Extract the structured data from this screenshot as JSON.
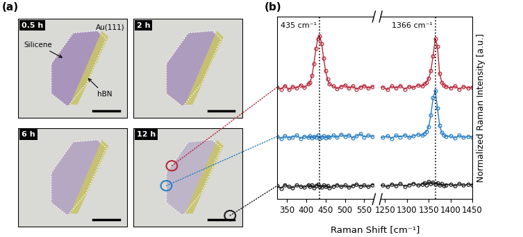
{
  "panel_a": {
    "label": "(a)",
    "frames": [
      "0.5 h",
      "2 h",
      "6 h",
      "12 h"
    ],
    "substrate": "Au(111)",
    "flake_labels": [
      "Silicene",
      "hBN"
    ]
  },
  "chart_data": {
    "type": "line",
    "panel": "(b)",
    "x_label": "Raman Shift [cm⁻¹]",
    "y_label": "Normalized Raman Intensity [a.u.]",
    "xlim_left": [
      325,
      575
    ],
    "xticks_left": [
      350,
      400,
      450,
      500,
      550
    ],
    "xlim_right": [
      1240,
      1450
    ],
    "xticks_right": [
      1250,
      1300,
      1350,
      1400,
      1450
    ],
    "ylim": [
      -0.25,
      3.45
    ],
    "tick_labels": "x",
    "marker": "o",
    "line_style": "solid",
    "annotations": [
      {
        "text": "435 cm⁻¹",
        "x": 435
      },
      {
        "text": "1366 cm⁻¹",
        "x": 1366
      }
    ],
    "x": [
      325,
      335,
      345,
      355,
      365,
      375,
      385,
      395,
      405,
      410,
      415,
      420,
      425,
      430,
      435,
      440,
      445,
      450,
      455,
      460,
      470,
      480,
      490,
      500,
      510,
      520,
      530,
      540,
      550,
      560,
      570,
      1245,
      1255,
      1265,
      1275,
      1285,
      1295,
      1305,
      1315,
      1325,
      1335,
      1340,
      1345,
      1350,
      1355,
      1360,
      1365,
      1370,
      1375,
      1380,
      1385,
      1390,
      1400,
      1410,
      1420,
      1430,
      1440,
      1450
    ],
    "series": [
      {
        "color": "#b5283a",
        "values": [
          2.02,
          1.98,
          2.05,
          1.97,
          2.03,
          2.0,
          2.06,
          2.01,
          2.08,
          2.12,
          2.25,
          2.5,
          2.8,
          3.0,
          3.05,
          2.9,
          2.6,
          2.35,
          2.18,
          2.08,
          2.04,
          1.99,
          2.03,
          2.06,
          2.0,
          2.04,
          1.98,
          2.02,
          2.05,
          2.0,
          2.03,
          2.02,
          1.97,
          2.04,
          2.0,
          2.05,
          1.98,
          2.03,
          2.01,
          2.06,
          2.04,
          2.08,
          2.12,
          2.2,
          2.35,
          2.65,
          3.0,
          2.85,
          2.3,
          2.12,
          2.06,
          2.03,
          2.0,
          2.04,
          1.98,
          2.03,
          2.0,
          2.02
        ]
      },
      {
        "color": "#2a7ec2",
        "values": [
          1.02,
          0.98,
          1.03,
          0.99,
          1.01,
          1.04,
          0.98,
          1.02,
          1.0,
          1.03,
          0.99,
          1.02,
          1.0,
          1.04,
          0.98,
          1.01,
          1.03,
          0.99,
          1.02,
          1.0,
          1.04,
          1.0,
          1.06,
          1.02,
          1.05,
          0.99,
          1.03,
          1.07,
          1.01,
          1.04,
          1.02,
          1.0,
          1.03,
          0.98,
          1.04,
          1.01,
          1.05,
          1.0,
          1.03,
          1.06,
          1.04,
          1.08,
          1.12,
          1.22,
          1.45,
          1.8,
          1.95,
          1.6,
          1.25,
          1.1,
          1.05,
          1.02,
          1.03,
          0.99,
          1.04,
          1.0,
          1.02,
          1.01
        ]
      },
      {
        "color": "#1a1a1a",
        "values": [
          0.02,
          -0.03,
          0.04,
          0.0,
          -0.02,
          0.03,
          0.01,
          -0.01,
          0.04,
          0.0,
          0.03,
          -0.02,
          0.02,
          0.05,
          0.01,
          -0.01,
          0.03,
          0.0,
          0.02,
          -0.02,
          0.01,
          0.04,
          0.0,
          0.03,
          -0.01,
          0.02,
          0.05,
          0.01,
          0.03,
          0.0,
          0.04,
          0.03,
          0.0,
          0.05,
          0.02,
          0.06,
          0.01,
          0.04,
          0.07,
          0.03,
          0.05,
          0.08,
          0.04,
          0.1,
          0.06,
          0.09,
          0.05,
          0.08,
          0.03,
          0.06,
          0.02,
          0.04,
          0.05,
          0.02,
          0.06,
          0.03,
          0.05,
          0.04
        ]
      }
    ]
  }
}
